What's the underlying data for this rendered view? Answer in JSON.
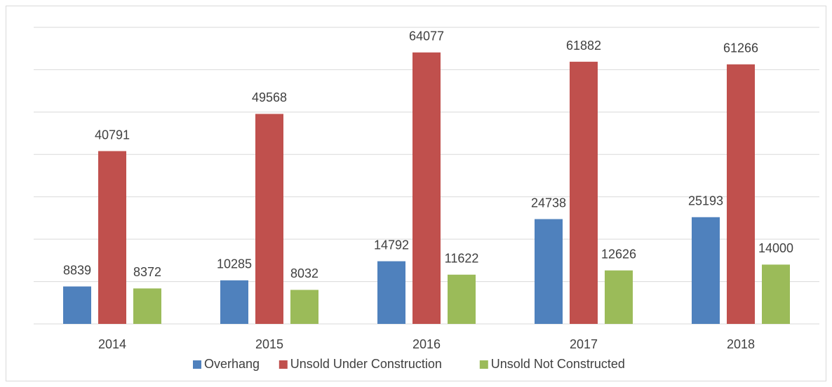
{
  "chart_data": {
    "type": "bar",
    "categories": [
      "2014",
      "2015",
      "2016",
      "2017",
      "2018"
    ],
    "series": [
      {
        "name": "Overhang",
        "color": "#4f81bd",
        "values": [
          8839,
          10285,
          14792,
          24738,
          25193
        ]
      },
      {
        "name": "Unsold Under Construction",
        "color": "#c0504d",
        "values": [
          40791,
          49568,
          64077,
          61882,
          61266
        ]
      },
      {
        "name": "Unsold Not Constructed",
        "color": "#9bbb59",
        "values": [
          8372,
          8032,
          11622,
          12626,
          14000
        ]
      }
    ],
    "ylim": [
      0,
      70000
    ],
    "yticks": [
      0,
      10000,
      20000,
      30000,
      40000,
      50000,
      60000,
      70000
    ],
    "grid": true,
    "legend": "bottom"
  }
}
